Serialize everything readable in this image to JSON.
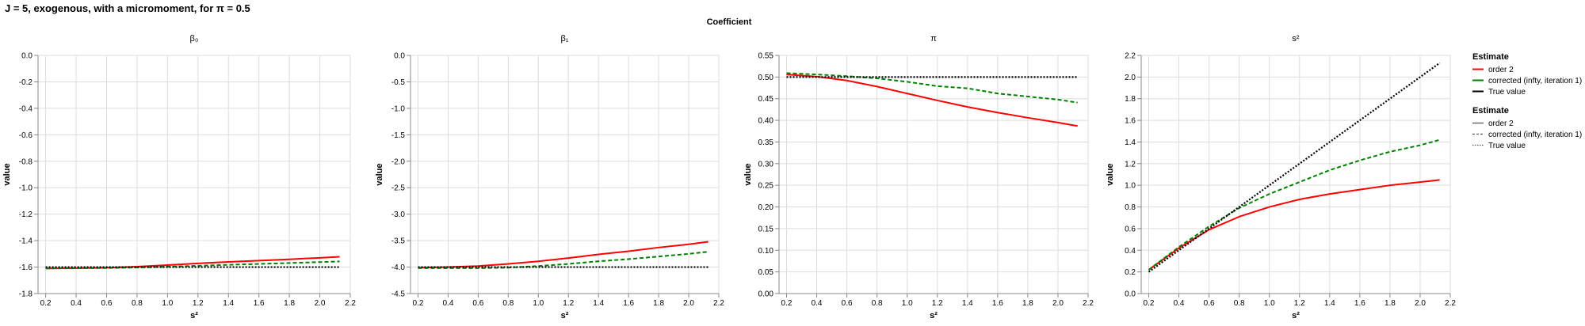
{
  "page": {
    "title": "J = 5, exogenous, with a micromoment,  for π = 0.5",
    "facet_header": "Coefficient"
  },
  "legends": [
    {
      "title": "Estimate",
      "entries": [
        {
          "label": "order 2",
          "color": "#ff0000"
        },
        {
          "label": "corrected (infty, iteration 1)",
          "color": "#008000"
        },
        {
          "label": "True value",
          "color": "#000000"
        }
      ]
    },
    {
      "title": "Estimate",
      "entries": [
        {
          "label": "order 2",
          "dash": "solid"
        },
        {
          "label": "corrected (infty, iteration 1)",
          "dash": "dashed"
        },
        {
          "label": "True value",
          "dash": "dotted"
        }
      ]
    }
  ],
  "chart_data": [
    {
      "type": "line",
      "title": "β₀",
      "xlabel": "s²",
      "ylabel": "value",
      "xlim": [
        0.15,
        2.2
      ],
      "ylim": [
        -1.8,
        0.0
      ],
      "xticks": [
        "0.2",
        "0.4",
        "0.6",
        "0.8",
        "1.0",
        "1.2",
        "1.4",
        "1.6",
        "1.8",
        "2.0",
        "2.2"
      ],
      "yticks": [
        "-1.8",
        "-1.6",
        "-1.4",
        "-1.2",
        "-1.0",
        "-0.8",
        "-0.6",
        "-0.4",
        "-0.2",
        "0.0"
      ],
      "x": [
        0.2,
        0.4,
        0.6,
        0.8,
        1.0,
        1.2,
        1.4,
        1.6,
        1.8,
        2.0,
        2.13
      ],
      "series": [
        {
          "name": "order 2",
          "color": "#ff0000",
          "dash": "solid",
          "values": [
            -1.61,
            -1.608,
            -1.605,
            -1.597,
            -1.585,
            -1.572,
            -1.561,
            -1.551,
            -1.541,
            -1.53,
            -1.522
          ]
        },
        {
          "name": "corrected (infty, iteration 1)",
          "color": "#008000",
          "dash": "dashed",
          "values": [
            -1.61,
            -1.609,
            -1.607,
            -1.603,
            -1.597,
            -1.59,
            -1.583,
            -1.576,
            -1.569,
            -1.562,
            -1.557
          ]
        },
        {
          "name": "True value",
          "color": "#000000",
          "dash": "dotted",
          "values": [
            -1.6,
            -1.6,
            -1.6,
            -1.6,
            -1.6,
            -1.6,
            -1.6,
            -1.6,
            -1.6,
            -1.6,
            -1.6
          ]
        }
      ]
    },
    {
      "type": "line",
      "title": "β₁",
      "xlabel": "s²",
      "ylabel": "value",
      "xlim": [
        0.15,
        2.2
      ],
      "ylim": [
        -4.5,
        0.0
      ],
      "xticks": [
        "0.2",
        "0.4",
        "0.6",
        "0.8",
        "1.0",
        "1.2",
        "1.4",
        "1.6",
        "1.8",
        "2.0",
        "2.2"
      ],
      "yticks": [
        "-4.5",
        "-4.0",
        "-3.5",
        "-3.0",
        "-2.5",
        "-2.0",
        "-1.5",
        "-1.0",
        "-0.5",
        "0.0"
      ],
      "x": [
        0.2,
        0.4,
        0.6,
        0.8,
        1.0,
        1.2,
        1.4,
        1.6,
        1.8,
        2.0,
        2.13
      ],
      "series": [
        {
          "name": "order 2",
          "color": "#ff0000",
          "dash": "solid",
          "values": [
            -4.01,
            -4.0,
            -3.98,
            -3.94,
            -3.89,
            -3.83,
            -3.76,
            -3.7,
            -3.63,
            -3.57,
            -3.52
          ]
        },
        {
          "name": "corrected (infty, iteration 1)",
          "color": "#008000",
          "dash": "dashed",
          "values": [
            -4.02,
            -4.02,
            -4.02,
            -4.01,
            -3.98,
            -3.94,
            -3.89,
            -3.85,
            -3.8,
            -3.75,
            -3.71
          ]
        },
        {
          "name": "True value",
          "color": "#000000",
          "dash": "dotted",
          "values": [
            -4.0,
            -4.0,
            -4.0,
            -4.0,
            -4.0,
            -4.0,
            -4.0,
            -4.0,
            -4.0,
            -4.0,
            -4.0
          ]
        }
      ]
    },
    {
      "type": "line",
      "title": "π",
      "xlabel": "s²",
      "ylabel": "value",
      "xlim": [
        0.15,
        2.2
      ],
      "ylim": [
        0.0,
        0.55
      ],
      "xticks": [
        "0.2",
        "0.4",
        "0.6",
        "0.8",
        "1.0",
        "1.2",
        "1.4",
        "1.6",
        "1.8",
        "2.0",
        "2.2"
      ],
      "yticks": [
        "0.00",
        "0.05",
        "0.10",
        "0.15",
        "0.20",
        "0.25",
        "0.30",
        "0.35",
        "0.40",
        "0.45",
        "0.50",
        "0.55"
      ],
      "x": [
        0.2,
        0.4,
        0.6,
        0.8,
        1.0,
        1.2,
        1.4,
        1.6,
        1.8,
        2.0,
        2.13
      ],
      "series": [
        {
          "name": "order 2",
          "color": "#ff0000",
          "dash": "solid",
          "values": [
            0.506,
            0.501,
            0.492,
            0.478,
            0.462,
            0.446,
            0.431,
            0.418,
            0.406,
            0.395,
            0.387
          ]
        },
        {
          "name": "corrected (infty, iteration 1)",
          "color": "#008000",
          "dash": "dashed",
          "values": [
            0.509,
            0.506,
            0.502,
            0.497,
            0.489,
            0.479,
            0.474,
            0.462,
            0.455,
            0.448,
            0.441
          ]
        },
        {
          "name": "True value",
          "color": "#000000",
          "dash": "dotted",
          "values": [
            0.5,
            0.5,
            0.5,
            0.5,
            0.5,
            0.5,
            0.5,
            0.5,
            0.5,
            0.5,
            0.5
          ]
        }
      ]
    },
    {
      "type": "line",
      "title": "s²",
      "xlabel": "s²",
      "ylabel": "value",
      "xlim": [
        0.15,
        2.2
      ],
      "ylim": [
        0.0,
        2.2
      ],
      "xticks": [
        "0.2",
        "0.4",
        "0.6",
        "0.8",
        "1.0",
        "1.2",
        "1.4",
        "1.6",
        "1.8",
        "2.0",
        "2.2"
      ],
      "yticks": [
        "0.0",
        "0.2",
        "0.4",
        "0.6",
        "0.8",
        "1.0",
        "1.2",
        "1.4",
        "1.6",
        "1.8",
        "2.0",
        "2.2"
      ],
      "x": [
        0.2,
        0.4,
        0.6,
        0.8,
        1.0,
        1.2,
        1.4,
        1.6,
        1.8,
        2.0,
        2.13
      ],
      "series": [
        {
          "name": "order 2",
          "color": "#ff0000",
          "dash": "solid",
          "values": [
            0.22,
            0.42,
            0.59,
            0.71,
            0.8,
            0.87,
            0.92,
            0.96,
            1.0,
            1.03,
            1.05
          ]
        },
        {
          "name": "corrected (infty, iteration 1)",
          "color": "#008000",
          "dash": "dashed",
          "values": [
            0.22,
            0.43,
            0.62,
            0.79,
            0.92,
            1.03,
            1.14,
            1.23,
            1.31,
            1.37,
            1.42
          ]
        },
        {
          "name": "True value",
          "color": "#000000",
          "dash": "dotted",
          "values": [
            0.2,
            0.4,
            0.6,
            0.8,
            1.0,
            1.2,
            1.4,
            1.6,
            1.8,
            2.0,
            2.13
          ]
        }
      ]
    }
  ]
}
